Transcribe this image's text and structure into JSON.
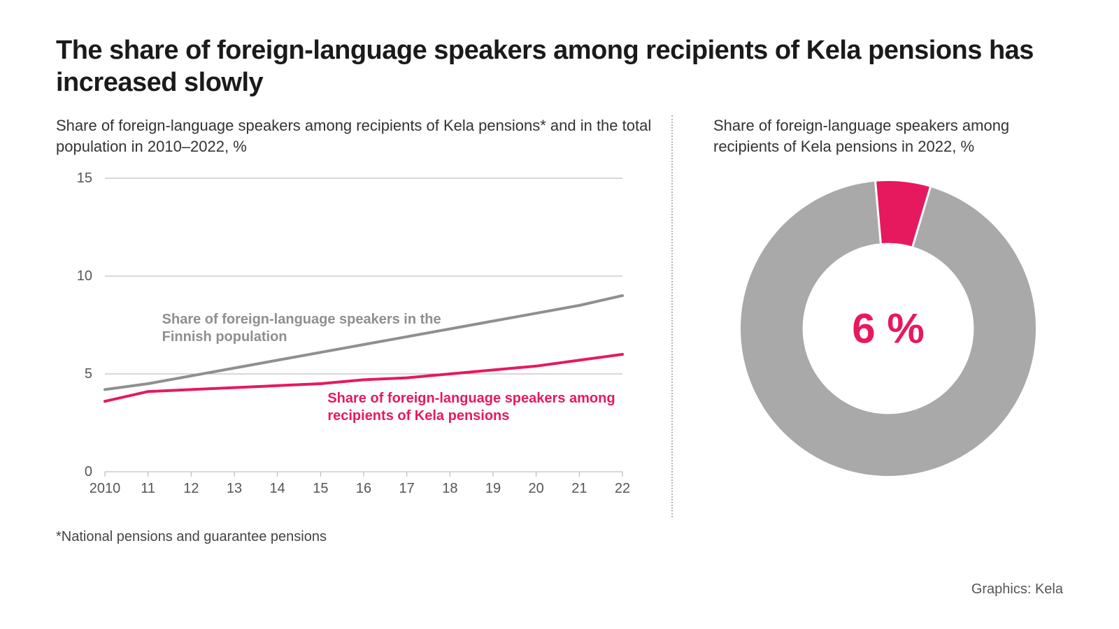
{
  "title": "The share of foreign-language speakers among recipients of Kela pensions has increased slowly",
  "left": {
    "subtitle": "Share of foreign-language speakers among recipients of Kela pensions* and in the total population in 2010–2022, %",
    "footnote": "*National pensions and guarantee pensions",
    "chart": {
      "type": "line",
      "background_color": "#ffffff",
      "grid_color": "#b0b0b0",
      "axis_color": "#888888",
      "axis_text_color": "#555555",
      "ylim": [
        0,
        15
      ],
      "yticks": [
        0,
        5,
        10,
        15
      ],
      "x_labels": [
        "2010",
        "11",
        "12",
        "13",
        "14",
        "15",
        "16",
        "17",
        "18",
        "19",
        "20",
        "21",
        "22"
      ],
      "line_width": 4,
      "series": [
        {
          "name": "population",
          "label": "Share of foreign-language speakers in the Finnish population",
          "color": "#8f8f8f",
          "values": [
            4.2,
            4.5,
            4.9,
            5.3,
            5.7,
            6.1,
            6.5,
            6.9,
            7.3,
            7.7,
            8.1,
            8.5,
            9.0
          ]
        },
        {
          "name": "kela",
          "label": "Share of foreign-language speakers among recipients of Kela pensions",
          "color": "#e6195f",
          "values": [
            3.6,
            4.1,
            4.2,
            4.3,
            4.4,
            4.5,
            4.7,
            4.8,
            5.0,
            5.2,
            5.4,
            5.7,
            6.0
          ]
        }
      ],
      "label_fontsize": 20
    }
  },
  "right": {
    "subtitle": "Share of foreign-language speakers among recipients of Kela pensions in 2022, %",
    "donut": {
      "type": "donut",
      "value": 6,
      "value_label": "6 %",
      "value_color": "#e6195f",
      "remainder_color": "#a9a9a9",
      "center_text_color": "#e6195f",
      "background_color": "#ffffff",
      "inner_ratio": 0.58,
      "start_angle_deg": -5
    }
  },
  "credit": "Graphics: Kela"
}
